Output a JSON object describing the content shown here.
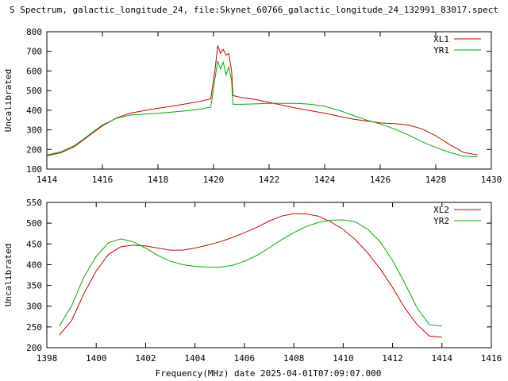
{
  "title": "S Spectrum, galactic_longitude_24, file:Skynet_60766_galactic_longitude_24_132991_83017.spect",
  "xlabel": "Frequency(MHz) date 2025-04-01T07:09:07.000",
  "colors": {
    "red": "#cc0000",
    "green": "#00aa00"
  },
  "chart_data": [
    {
      "type": "line",
      "ylabel": "Uncalibrated",
      "xlim": [
        1414,
        1430
      ],
      "ylim": [
        100,
        800
      ],
      "xticks": [
        1414,
        1416,
        1418,
        1420,
        1422,
        1424,
        1426,
        1428,
        1430
      ],
      "yticks": [
        100,
        200,
        300,
        400,
        500,
        600,
        700,
        800
      ],
      "legend": "top-right",
      "series": [
        {
          "name": "XL1",
          "color": "#cc0000",
          "points": [
            [
              1414.0,
              168
            ],
            [
              1414.5,
              183
            ],
            [
              1415.0,
              215
            ],
            [
              1415.5,
              268
            ],
            [
              1416.0,
              320
            ],
            [
              1416.5,
              360
            ],
            [
              1417.0,
              385
            ],
            [
              1417.5,
              398
            ],
            [
              1418.0,
              410
            ],
            [
              1418.5,
              420
            ],
            [
              1419.0,
              432
            ],
            [
              1419.5,
              445
            ],
            [
              1419.9,
              458
            ],
            [
              1420.05,
              600
            ],
            [
              1420.15,
              730
            ],
            [
              1420.25,
              690
            ],
            [
              1420.35,
              710
            ],
            [
              1420.45,
              680
            ],
            [
              1420.55,
              690
            ],
            [
              1420.65,
              600
            ],
            [
              1420.7,
              475
            ],
            [
              1421.0,
              465
            ],
            [
              1421.5,
              455
            ],
            [
              1422.0,
              440
            ],
            [
              1422.5,
              425
            ],
            [
              1423.0,
              410
            ],
            [
              1424.0,
              385
            ],
            [
              1425.0,
              355
            ],
            [
              1425.5,
              345
            ],
            [
              1426.0,
              335
            ],
            [
              1426.5,
              332
            ],
            [
              1427.0,
              325
            ],
            [
              1427.5,
              305
            ],
            [
              1428.0,
              270
            ],
            [
              1428.5,
              225
            ],
            [
              1429.0,
              185
            ],
            [
              1429.5,
              172
            ]
          ]
        },
        {
          "name": "YR1",
          "color": "#00aa00",
          "points": [
            [
              1414.0,
              172
            ],
            [
              1414.5,
              188
            ],
            [
              1415.0,
              220
            ],
            [
              1415.5,
              272
            ],
            [
              1416.0,
              325
            ],
            [
              1416.5,
              358
            ],
            [
              1417.0,
              375
            ],
            [
              1417.5,
              380
            ],
            [
              1418.0,
              384
            ],
            [
              1418.5,
              390
            ],
            [
              1419.0,
              397
            ],
            [
              1419.5,
              405
            ],
            [
              1419.9,
              415
            ],
            [
              1420.05,
              560
            ],
            [
              1420.15,
              650
            ],
            [
              1420.25,
              610
            ],
            [
              1420.35,
              645
            ],
            [
              1420.45,
              580
            ],
            [
              1420.55,
              620
            ],
            [
              1420.65,
              550
            ],
            [
              1420.7,
              430
            ],
            [
              1421.0,
              430
            ],
            [
              1421.5,
              432
            ],
            [
              1422.0,
              435
            ],
            [
              1422.5,
              435
            ],
            [
              1423.0,
              435
            ],
            [
              1423.5,
              430
            ],
            [
              1424.0,
              420
            ],
            [
              1424.5,
              400
            ],
            [
              1425.0,
              375
            ],
            [
              1425.5,
              350
            ],
            [
              1426.0,
              330
            ],
            [
              1426.5,
              305
            ],
            [
              1427.0,
              275
            ],
            [
              1427.5,
              240
            ],
            [
              1428.0,
              210
            ],
            [
              1428.5,
              185
            ],
            [
              1429.0,
              165
            ],
            [
              1429.5,
              162
            ]
          ]
        }
      ]
    },
    {
      "type": "line",
      "ylabel": "Uncalibrated",
      "xlim": [
        1398,
        1416
      ],
      "ylim": [
        200,
        550
      ],
      "xticks": [
        1398,
        1400,
        1402,
        1404,
        1406,
        1408,
        1410,
        1412,
        1414,
        1416
      ],
      "yticks": [
        200,
        250,
        300,
        350,
        400,
        450,
        500,
        550
      ],
      "legend": "top-right",
      "series": [
        {
          "name": "XL2",
          "color": "#cc0000",
          "points": [
            [
              1398.5,
              230
            ],
            [
              1399.0,
              265
            ],
            [
              1399.5,
              330
            ],
            [
              1400.0,
              385
            ],
            [
              1400.5,
              425
            ],
            [
              1401.0,
              443
            ],
            [
              1401.5,
              447
            ],
            [
              1402.0,
              445
            ],
            [
              1402.5,
              440
            ],
            [
              1403.0,
              435
            ],
            [
              1403.5,
              435
            ],
            [
              1404.0,
              440
            ],
            [
              1404.5,
              447
            ],
            [
              1405.0,
              455
            ],
            [
              1405.5,
              465
            ],
            [
              1406.0,
              477
            ],
            [
              1406.5,
              490
            ],
            [
              1407.0,
              505
            ],
            [
              1407.5,
              517
            ],
            [
              1408.0,
              523
            ],
            [
              1408.5,
              522
            ],
            [
              1409.0,
              517
            ],
            [
              1409.5,
              503
            ],
            [
              1410.0,
              485
            ],
            [
              1410.5,
              460
            ],
            [
              1411.0,
              428
            ],
            [
              1411.5,
              390
            ],
            [
              1412.0,
              345
            ],
            [
              1412.5,
              295
            ],
            [
              1413.0,
              255
            ],
            [
              1413.5,
              228
            ],
            [
              1414.0,
              225
            ]
          ]
        },
        {
          "name": "YR2",
          "color": "#00aa00",
          "points": [
            [
              1398.5,
              252
            ],
            [
              1399.0,
              300
            ],
            [
              1399.5,
              370
            ],
            [
              1400.0,
              420
            ],
            [
              1400.5,
              453
            ],
            [
              1401.0,
              462
            ],
            [
              1401.5,
              455
            ],
            [
              1402.0,
              440
            ],
            [
              1402.5,
              422
            ],
            [
              1403.0,
              408
            ],
            [
              1403.5,
              400
            ],
            [
              1404.0,
              396
            ],
            [
              1404.5,
              394
            ],
            [
              1405.0,
              394
            ],
            [
              1405.5,
              398
            ],
            [
              1406.0,
              408
            ],
            [
              1406.5,
              422
            ],
            [
              1407.0,
              440
            ],
            [
              1407.5,
              460
            ],
            [
              1408.0,
              477
            ],
            [
              1408.5,
              492
            ],
            [
              1409.0,
              502
            ],
            [
              1409.5,
              507
            ],
            [
              1410.0,
              508
            ],
            [
              1410.5,
              503
            ],
            [
              1411.0,
              485
            ],
            [
              1411.5,
              455
            ],
            [
              1412.0,
              410
            ],
            [
              1412.5,
              355
            ],
            [
              1413.0,
              295
            ],
            [
              1413.5,
              255
            ],
            [
              1414.0,
              252
            ]
          ]
        }
      ]
    }
  ]
}
